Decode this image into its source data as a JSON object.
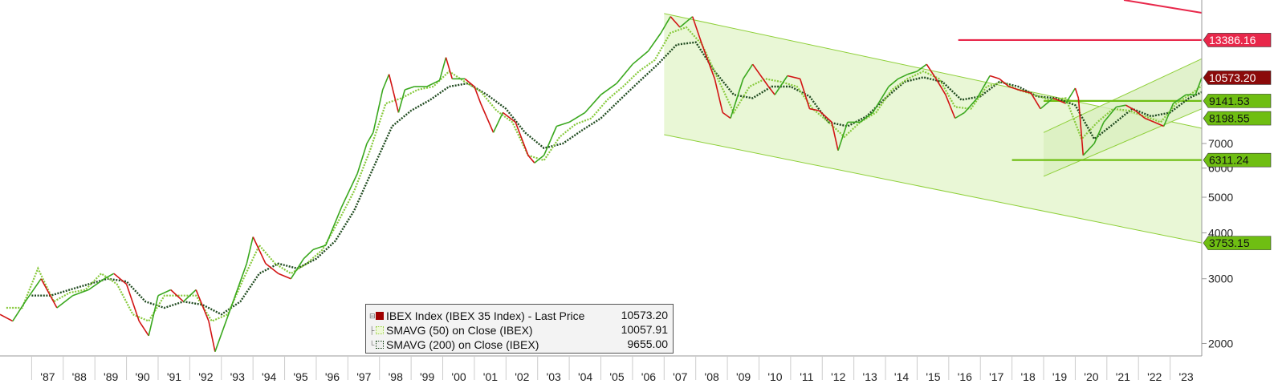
{
  "chart_data": {
    "type": "line",
    "scale": "log",
    "xlim": [
      1986.0,
      2024.0
    ],
    "ylim": [
      1850,
      17200
    ],
    "x_ticks": [
      {
        "label": "'87",
        "year": 1987
      },
      {
        "label": "'88",
        "year": 1988
      },
      {
        "label": "'89",
        "year": 1989
      },
      {
        "label": "'90",
        "year": 1990
      },
      {
        "label": "'91",
        "year": 1991
      },
      {
        "label": "'92",
        "year": 1992
      },
      {
        "label": "'93",
        "year": 1993
      },
      {
        "label": "'94",
        "year": 1994
      },
      {
        "label": "'95",
        "year": 1995
      },
      {
        "label": "'96",
        "year": 1996
      },
      {
        "label": "'97",
        "year": 1997
      },
      {
        "label": "'98",
        "year": 1998
      },
      {
        "label": "'99",
        "year": 1999
      },
      {
        "label": "'00",
        "year": 2000
      },
      {
        "label": "'01",
        "year": 2001
      },
      {
        "label": "'02",
        "year": 2002
      },
      {
        "label": "'03",
        "year": 2003
      },
      {
        "label": "'04",
        "year": 2004
      },
      {
        "label": "'05",
        "year": 2005
      },
      {
        "label": "'06",
        "year": 2006
      },
      {
        "label": "'07",
        "year": 2007
      },
      {
        "label": "'08",
        "year": 2008
      },
      {
        "label": "'09",
        "year": 2009
      },
      {
        "label": "'10",
        "year": 2010
      },
      {
        "label": "'11",
        "year": 2011
      },
      {
        "label": "'12",
        "year": 2012
      },
      {
        "label": "'13",
        "year": 2013
      },
      {
        "label": "'14",
        "year": 2014
      },
      {
        "label": "'15",
        "year": 2015
      },
      {
        "label": "'16",
        "year": 2016
      },
      {
        "label": "'17",
        "year": 2017
      },
      {
        "label": "'18",
        "year": 2018
      },
      {
        "label": "'19",
        "year": 2019
      },
      {
        "label": "'20",
        "year": 2020
      },
      {
        "label": "'21",
        "year": 2021
      },
      {
        "label": "'22",
        "year": 2022
      },
      {
        "label": "'23",
        "year": 2023
      }
    ],
    "y_ticks": [
      {
        "label": "2000",
        "value": 2000
      },
      {
        "label": "3000",
        "value": 3000
      },
      {
        "label": "4000",
        "value": 4000
      },
      {
        "label": "5000",
        "value": 5000
      },
      {
        "label": "6000",
        "value": 6000
      },
      {
        "label": "7000",
        "value": 7000
      }
    ],
    "series": [
      {
        "name": "IBEX Index (IBEX 35 Index) - Last Price",
        "color": "#d21414",
        "color_up": "#3aa81e",
        "last": "10573.20",
        "x": [
          1986.0,
          1986.4,
          1986.8,
          1987.3,
          1987.8,
          1988.3,
          1988.8,
          1989.3,
          1989.6,
          1990.0,
          1990.4,
          1990.7,
          1991.0,
          1991.4,
          1991.8,
          1992.2,
          1992.6,
          1992.8,
          1993.3,
          1993.8,
          1994.0,
          1994.4,
          1994.8,
          1995.2,
          1995.6,
          1995.9,
          1996.3,
          1996.8,
          1997.3,
          1997.6,
          1997.8,
          1998.1,
          1998.3,
          1998.6,
          1998.8,
          1999.1,
          1999.5,
          1999.9,
          2000.1,
          2000.3,
          2000.7,
          2001.0,
          2001.2,
          2001.6,
          2001.9,
          2002.3,
          2002.7,
          2002.9,
          2003.2,
          2003.6,
          2004.0,
          2004.5,
          2005.0,
          2005.5,
          2006.0,
          2006.5,
          2006.9,
          2007.2,
          2007.5,
          2007.9,
          2008.2,
          2008.6,
          2008.85,
          2009.1,
          2009.5,
          2009.8,
          2010.3,
          2010.5,
          2010.9,
          2011.3,
          2011.6,
          2011.9,
          2012.3,
          2012.5,
          2012.8,
          2013.2,
          2013.6,
          2014.1,
          2014.4,
          2014.7,
          2015.0,
          2015.3,
          2015.6,
          2015.9,
          2016.2,
          2016.5,
          2016.9,
          2017.3,
          2017.6,
          2017.9,
          2018.2,
          2018.6,
          2018.9,
          2019.3,
          2019.7,
          2020.0,
          2020.1,
          2020.25,
          2020.6,
          2020.9,
          2021.3,
          2021.6,
          2021.9,
          2022.2,
          2022.5,
          2022.8,
          2023.1,
          2023.5,
          2023.8,
          2024.0
        ],
        "y": [
          2400,
          2300,
          2600,
          3000,
          2500,
          2700,
          2800,
          3000,
          3100,
          2900,
          2300,
          2100,
          2700,
          2800,
          2600,
          2800,
          2300,
          1900,
          2500,
          3300,
          3900,
          3300,
          3100,
          3000,
          3400,
          3600,
          3700,
          4700,
          5800,
          7000,
          7500,
          9800,
          10800,
          8500,
          9800,
          10000,
          10000,
          10400,
          12000,
          10500,
          10500,
          10000,
          9000,
          7500,
          8500,
          8000,
          6500,
          6200,
          6500,
          7800,
          8000,
          8500,
          9500,
          10200,
          11500,
          12500,
          14000,
          15500,
          14500,
          15500,
          13000,
          10500,
          8500,
          8200,
          10500,
          11500,
          10000,
          9500,
          10700,
          10500,
          8700,
          8600,
          8000,
          6700,
          8000,
          8000,
          8500,
          10000,
          10500,
          10800,
          11000,
          11500,
          10500,
          9500,
          8200,
          8500,
          9300,
          10700,
          10500,
          10000,
          9800,
          9600,
          8700,
          9300,
          9000,
          9900,
          9300,
          6500,
          7000,
          8000,
          8800,
          8900,
          8600,
          8200,
          8000,
          7800,
          9000,
          9500,
          9500,
          10573
        ]
      },
      {
        "name": "SMAVG (50)  on Close (IBEX)",
        "color": "#c6e87a",
        "last": "10057.91",
        "x": [
          1986.2,
          1986.7,
          1987.2,
          1987.7,
          1988.2,
          1988.7,
          1989.2,
          1989.7,
          1990.2,
          1990.7,
          1991.2,
          1991.7,
          1992.2,
          1992.7,
          1993.2,
          1993.7,
          1994.2,
          1994.7,
          1995.2,
          1995.7,
          1996.2,
          1996.7,
          1997.2,
          1997.7,
          1998.2,
          1998.7,
          1999.2,
          1999.7,
          2000.2,
          2000.7,
          2001.2,
          2001.7,
          2002.2,
          2002.7,
          2003.2,
          2003.7,
          2004.2,
          2004.7,
          2005.2,
          2005.7,
          2006.2,
          2006.7,
          2007.2,
          2007.7,
          2008.2,
          2008.7,
          2009.2,
          2009.7,
          2010.2,
          2010.7,
          2011.2,
          2011.7,
          2012.2,
          2012.7,
          2013.2,
          2013.7,
          2014.2,
          2014.7,
          2015.2,
          2015.7,
          2016.2,
          2016.7,
          2017.2,
          2017.7,
          2018.2,
          2018.7,
          2019.2,
          2019.7,
          2020.2,
          2020.7,
          2021.2,
          2021.7,
          2022.2,
          2022.7,
          2023.2,
          2023.7,
          2024.0
        ],
        "y": [
          2500,
          2500,
          3200,
          2600,
          2750,
          2800,
          3100,
          2900,
          2400,
          2300,
          2700,
          2700,
          2700,
          2300,
          2400,
          3000,
          3700,
          3300,
          3100,
          3300,
          3600,
          4300,
          5200,
          6700,
          9000,
          9300,
          9800,
          10000,
          11000,
          10300,
          9700,
          8600,
          8000,
          6500,
          6300,
          7300,
          7900,
          8200,
          9200,
          10000,
          11000,
          11800,
          14000,
          14500,
          13000,
          10500,
          8500,
          10000,
          10500,
          10300,
          10000,
          8700,
          8000,
          7300,
          8000,
          8500,
          9800,
          10500,
          11000,
          10500,
          8800,
          8700,
          10000,
          10300,
          9800,
          9500,
          9200,
          9300,
          7200,
          8000,
          8700,
          8600,
          8300,
          8000,
          9000,
          9600,
          10057
        ]
      },
      {
        "name": "SMAVG (200)  on Close (IBEX)",
        "color": "#1f4a1f",
        "last": "9655.00",
        "x": [
          1987.0,
          1987.6,
          1988.2,
          1988.8,
          1989.4,
          1990.0,
          1990.6,
          1991.2,
          1991.8,
          1992.4,
          1993.0,
          1993.6,
          1994.2,
          1994.8,
          1995.4,
          1996.0,
          1996.6,
          1997.2,
          1997.8,
          1998.4,
          1999.0,
          1999.6,
          2000.2,
          2000.8,
          2001.4,
          2002.0,
          2002.6,
          2003.2,
          2003.8,
          2004.4,
          2005.0,
          2005.6,
          2006.2,
          2006.8,
          2007.4,
          2008.0,
          2008.6,
          2009.2,
          2009.8,
          2010.4,
          2011.0,
          2011.6,
          2012.2,
          2012.8,
          2013.4,
          2014.0,
          2014.6,
          2015.2,
          2015.8,
          2016.4,
          2017.0,
          2017.6,
          2018.2,
          2018.8,
          2019.4,
          2020.0,
          2020.6,
          2021.2,
          2021.8,
          2022.4,
          2023.0,
          2023.6,
          2024.0
        ],
        "y": [
          2700,
          2700,
          2800,
          2900,
          3000,
          2950,
          2600,
          2500,
          2600,
          2550,
          2400,
          2600,
          3100,
          3300,
          3200,
          3400,
          3800,
          4600,
          6000,
          7800,
          8600,
          9200,
          10000,
          10200,
          9500,
          8700,
          7500,
          6800,
          7000,
          7600,
          8200,
          9200,
          10300,
          11500,
          13000,
          13200,
          11000,
          9500,
          9300,
          10000,
          10000,
          9400,
          8000,
          7800,
          8300,
          9300,
          10300,
          10600,
          10300,
          9200,
          9400,
          10300,
          10000,
          9400,
          9300,
          8900,
          7200,
          7900,
          8700,
          8300,
          8500,
          9300,
          9655
        ]
      }
    ],
    "channel": {
      "main": {
        "x0": 2007.0,
        "x1": 2024.0,
        "upper0": 15800,
        "upper1": 7700,
        "lower0": 7400,
        "lower1": 3753.15
      },
      "inner": {
        "x0": 2019.0,
        "x1": 2024.0,
        "upper0": 7500,
        "upper1": 11900,
        "lower0": 5700,
        "lower1": 8700
      }
    },
    "levels": [
      {
        "value": 13386.16,
        "label": "13386.16",
        "x0": 2016.3,
        "color": "#e8274a",
        "text_color": "#ffffff"
      },
      {
        "value": 10573.2,
        "label": "10573.20",
        "x0": 2024.0,
        "color": "#8b0a0a",
        "text_color": "#ffffff"
      },
      {
        "value": 9141.53,
        "label": "9141.53",
        "x0": 2019.0,
        "color": "#6fbe12",
        "text_color": "#111111"
      },
      {
        "value": 8198.55,
        "label": "8198.55",
        "x0": 2024.0,
        "color": "#6fbe12",
        "text_color": "#111111"
      },
      {
        "value": 6311.24,
        "label": "6311.24",
        "x0": 2018.0,
        "color": "#6fbe12",
        "text_color": "#111111"
      },
      {
        "value": 3753.15,
        "label": "3753.15",
        "x0": 2024.0,
        "color": "#6fbe12",
        "text_color": "#111111"
      }
    ],
    "legend": {
      "placement": "bottom-center",
      "items": [
        {
          "label": "IBEX Index (IBEX 35 Index) - Last Price",
          "value": "10573.20",
          "swatch": "#a00000"
        },
        {
          "label": "SMAVG (50)  on Close (IBEX)",
          "value": "10057.91",
          "swatch": "#c6e87a"
        },
        {
          "label": "SMAVG (200)  on Close (IBEX)",
          "value": "9655.00",
          "swatch": "#1f4a1f"
        }
      ]
    },
    "grid": false
  }
}
